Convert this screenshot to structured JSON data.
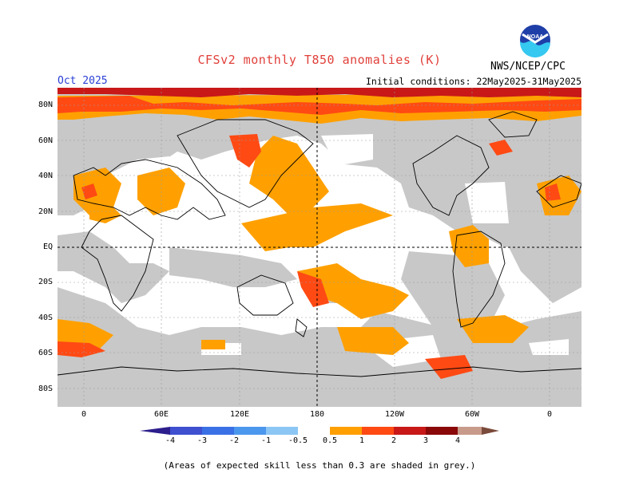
{
  "header": {
    "title": "CFSv2 monthly T850 anomalies (K)",
    "month": "Oct 2025",
    "initial_conditions": "Initial conditions: 22May2025-31May2025",
    "agency": "NWS/NCEP/CPC",
    "logo_text": "NOAA"
  },
  "map": {
    "lat_labels": [
      "80N",
      "60N",
      "40N",
      "20N",
      "EQ",
      "20S",
      "40S",
      "60S",
      "80S"
    ],
    "lon_labels": [
      "0",
      "60E",
      "120E",
      "180",
      "120W",
      "60W",
      "0"
    ],
    "background_color": "#ffffff",
    "low_skill_color": "#c8c8c8"
  },
  "colorbar": {
    "labels": [
      "-4",
      "-3",
      "-2",
      "-1",
      "-0.5",
      "0.5",
      "1",
      "2",
      "3",
      "4"
    ],
    "colors": [
      "#2c1e8c",
      "#3e4fd0",
      "#3a70e6",
      "#4c97ee",
      "#8cc6f5",
      "#ffffff",
      "#ffa000",
      "#ff4a14",
      "#c81818",
      "#8a0808",
      "#c89a8a",
      "#7a4a3a"
    ]
  },
  "footnote": "(Areas of expected skill less than 0.3 are shaded in grey.)"
}
